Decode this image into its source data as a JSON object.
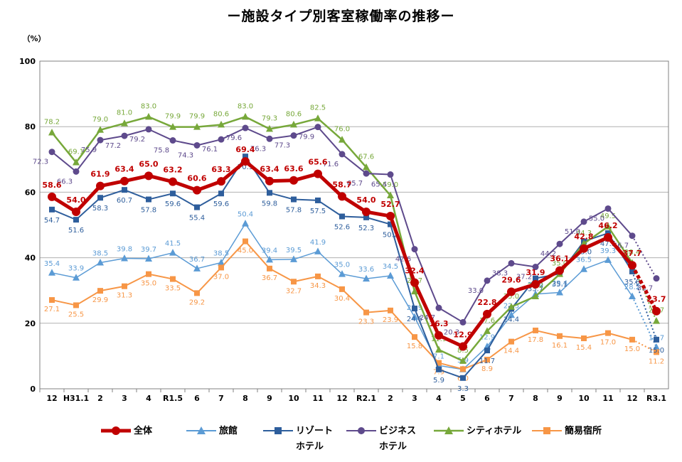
{
  "chart_data": {
    "type": "line",
    "title": "ー施設タイプ別客室稼働率の推移ー",
    "ylabel": "（%）",
    "ylim": [
      0,
      100
    ],
    "yticks": [
      "0",
      "20",
      "40",
      "60",
      "80",
      "100"
    ],
    "grid": true,
    "legend_position": "bottom",
    "categories": [
      "12",
      "H31.1",
      "2",
      "3",
      "4",
      "R1.5",
      "6",
      "7",
      "8",
      "9",
      "10",
      "11",
      "12",
      "R2.1",
      "2",
      "3",
      "4",
      "5",
      "6",
      "7",
      "8",
      "9",
      "10",
      "11",
      "12",
      "R3.1"
    ],
    "series": [
      {
        "key": "ryokan",
        "name": "旅館",
        "name_line2": "",
        "color": "#5b9bd5",
        "marker": "triangle",
        "width": 1.5,
        "values": [
          35.4,
          33.9,
          38.5,
          39.8,
          39.7,
          41.5,
          36.7,
          38.5,
          50.4,
          39.4,
          39.5,
          41.9,
          35.0,
          33.6,
          34.5,
          21.9,
          7.1,
          5.9,
          12.9,
          22.5,
          28.9,
          29.4,
          36.5,
          39.3,
          28.2,
          12.7
        ],
        "labels": [
          "35.4",
          "33.9",
          "38.5",
          "39.8",
          "39.7",
          "41.5",
          "36.7",
          "38.5",
          "50.4",
          "39.4",
          "39.5",
          "41.9",
          "35.0",
          "33.6",
          "34.5",
          "21.9",
          "7.1",
          "5.9",
          "12.9",
          "22.5",
          "28.9",
          "29.4",
          "36.5",
          "39.3",
          "28.2",
          "12.7"
        ]
      },
      {
        "key": "kan_i",
        "name": "簡易宿所",
        "name_line2": "",
        "color": "#f79646",
        "marker": "square",
        "width": 2,
        "values": [
          27.1,
          25.5,
          29.9,
          31.3,
          35.0,
          33.5,
          29.2,
          37.0,
          45.0,
          36.7,
          32.7,
          34.3,
          30.4,
          23.3,
          23.9,
          15.8,
          7.9,
          6.0,
          8.9,
          14.4,
          17.8,
          16.1,
          15.4,
          17.0,
          15.0,
          11.2
        ],
        "labels": [
          "27.1",
          "25.5",
          "29.9",
          "31.3",
          "35.0",
          "33.5",
          "29.2",
          "37.0",
          "45.0",
          "36.7",
          "32.7",
          "34.3",
          "30.4",
          "23.3",
          "23.9",
          "15.8",
          "7.9",
          "6.0",
          "8.9",
          "14.4",
          "17.8",
          "16.1",
          "15.4",
          "17.0",
          "15.0",
          "11.2"
        ]
      },
      {
        "key": "resort",
        "name": "リゾート",
        "name_line2": "ホテル",
        "color": "#2e5e9c",
        "marker": "square",
        "width": 2,
        "values": [
          54.7,
          51.6,
          58.3,
          60.7,
          57.8,
          59.6,
          55.4,
          59.6,
          70.9,
          59.8,
          57.8,
          57.5,
          52.6,
          52.3,
          50.2,
          24.5,
          5.9,
          3.3,
          11.7,
          24.4,
          33.7,
          35.1,
          45.0,
          47.5,
          35.8,
          15.0
        ],
        "labels": [
          "54.7",
          "51.6",
          "58.3",
          "60.7",
          "57.8",
          "59.6",
          "55.4",
          "59.6",
          "70.9",
          "59.8",
          "57.8",
          "57.5",
          "52.6",
          "52.3",
          "50.2",
          "24.5",
          "5.9",
          "3.3",
          "11.7",
          "24.4",
          "33.7",
          "35.1",
          "45.0",
          "47.5",
          "35.8",
          "15.0"
        ]
      },
      {
        "key": "city",
        "name": "シティホテル",
        "name_line2": "",
        "color": "#77a83a",
        "marker": "triangle",
        "width": 2.5,
        "values": [
          78.2,
          69.1,
          79.0,
          81.0,
          83.0,
          79.9,
          79.9,
          80.6,
          83.0,
          79.3,
          80.6,
          82.5,
          76.0,
          67.6,
          59.0,
          29.7,
          11.9,
          8.5,
          17.6,
          25.0,
          28.2,
          35.0,
          44.3,
          49.5,
          38.4,
          20.7
        ],
        "labels": [
          "78.2",
          "69.1",
          "79.0",
          "81.0",
          "83.0",
          "79.9",
          "79.9",
          "80.6",
          "83.0",
          "79.3",
          "80.6",
          "82.5",
          "76.0",
          "67.6",
          "59.0",
          "29.7",
          "11.9",
          "8.5",
          "17.6",
          "25.0",
          "28.2",
          "35.0",
          "44.3",
          "49.5",
          "38.4",
          "20.7"
        ]
      },
      {
        "key": "business",
        "name": "ビジネス",
        "name_line2": "ホテル",
        "color": "#5e4a8c",
        "marker": "circle",
        "width": 2,
        "values": [
          72.3,
          66.3,
          75.9,
          77.2,
          79.2,
          75.8,
          74.3,
          76.1,
          79.6,
          76.3,
          77.3,
          79.9,
          71.6,
          65.7,
          65.4,
          42.6,
          24.7,
          20.3,
          33.0,
          38.3,
          37.2,
          44.2,
          51.0,
          55.0,
          46.7,
          33.7
        ],
        "labels": [
          "72.3",
          "66.3",
          "75.9",
          "77.2",
          "79.2",
          "75.8",
          "74.3",
          "76.1",
          "79.6",
          "76.3",
          "77.3",
          "79.9",
          "71.6",
          "65.7",
          "65.4",
          "42.6",
          "24.7",
          "20.3",
          "33.0",
          "38.3",
          "37.2",
          "44.2",
          "51.0",
          "55.0",
          "46.7",
          "33.7"
        ]
      },
      {
        "key": "total",
        "name": "全体",
        "name_line2": "",
        "color": "#c00000",
        "marker": "circle",
        "width": 5,
        "values": [
          58.6,
          54.0,
          61.9,
          63.4,
          65.0,
          63.2,
          60.6,
          63.3,
          69.4,
          63.4,
          63.6,
          65.6,
          58.7,
          54.0,
          52.7,
          32.4,
          16.3,
          12.9,
          22.8,
          29.6,
          31.9,
          36.1,
          42.8,
          46.2,
          37.7,
          23.7
        ],
        "labels": [
          "58.6",
          "54.0",
          "61.9",
          "63.4",
          "65.0",
          "63.2",
          "60.6",
          "63.3",
          "69.4",
          "63.4",
          "63.6",
          "65.6",
          "58.7",
          "54.0",
          "52.7",
          "32.4",
          "16.3",
          "12.9",
          "22.8",
          "29.6",
          "31.9",
          "36.1",
          "42.8",
          "46.2",
          "37.7",
          "23.7"
        ]
      }
    ]
  }
}
